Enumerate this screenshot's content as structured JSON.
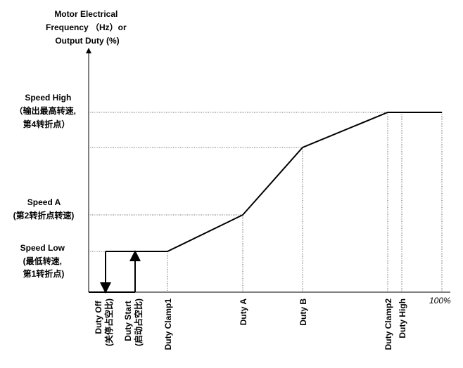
{
  "y_axis_title": [
    "Motor Electrical",
    "Frequency （Hz）or",
    "Output Duty (%)"
  ],
  "y_labels": {
    "speed_high": [
      "Speed High",
      "（输出最高转速,",
      "第4转折点）"
    ],
    "speed_a": [
      "Speed A",
      "(第2转折点转速)"
    ],
    "speed_low": [
      "Speed Low",
      "(最低转速,",
      "第1转折点)"
    ]
  },
  "x_labels": {
    "duty_off": [
      "Duty Off",
      "(关停占空比)"
    ],
    "duty_start": [
      "Duty Start",
      "(启动占空比)"
    ],
    "duty_clamp1": "Duty Clamp1",
    "duty_a": "Duty A",
    "duty_b": "Duty B",
    "duty_clamp2": "Duty Clamp2",
    "duty_high": "Duty High",
    "percent_100": "100%"
  },
  "colors": {
    "line": "#000000",
    "guide": "#333333",
    "background": "#ffffff"
  }
}
